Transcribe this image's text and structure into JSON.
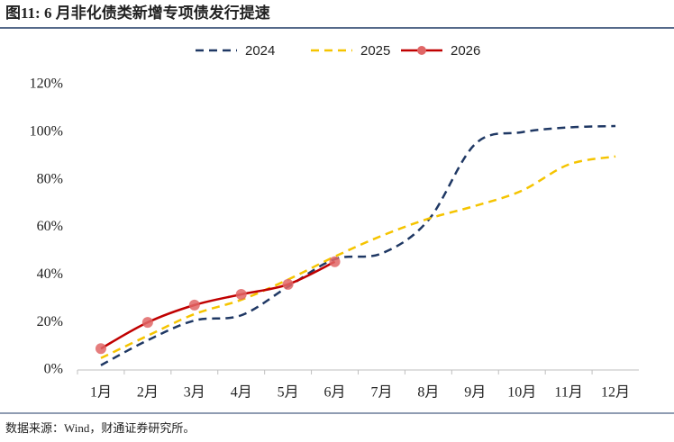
{
  "chart_data": {
    "type": "line",
    "title": "图11: 6 月非化债类新增专项债发行提速",
    "source": "数据来源：Wind，财通证券研究所。",
    "categories": [
      "1月",
      "2月",
      "3月",
      "4月",
      "5月",
      "6月",
      "7月",
      "8月",
      "9月",
      "10月",
      "11月",
      "12月"
    ],
    "series": [
      {
        "name": "2024",
        "color": "#1f3864",
        "style": "dashed",
        "values": [
          2,
          12.5,
          20.8,
          23,
          35,
          46.6,
          49,
          63,
          95,
          100,
          102,
          102.6
        ]
      },
      {
        "name": "2025",
        "color": "#f5c400",
        "style": "dashed",
        "values": [
          5,
          14.4,
          23.5,
          29.5,
          38,
          47.7,
          56.4,
          63.6,
          69,
          75.4,
          86.4,
          89.8
        ]
      },
      {
        "name": "2026",
        "color": "#c00000",
        "marker_color": "#e06666",
        "style": "solid",
        "markers": true,
        "values": [
          9,
          20,
          27.3,
          31.8,
          36,
          45.5,
          null,
          null,
          null,
          null,
          null,
          null
        ]
      }
    ],
    "ylim": [
      0,
      120
    ],
    "yticks": [
      {
        "value": 0,
        "label": "0%"
      },
      {
        "value": 20,
        "label": "20%"
      },
      {
        "value": 40,
        "label": "40%"
      },
      {
        "value": 60,
        "label": "60%"
      },
      {
        "value": 80,
        "label": "80%"
      },
      {
        "value": 100,
        "label": "100%"
      },
      {
        "value": 120,
        "label": "120%"
      }
    ],
    "legend": "top",
    "grid": false
  }
}
